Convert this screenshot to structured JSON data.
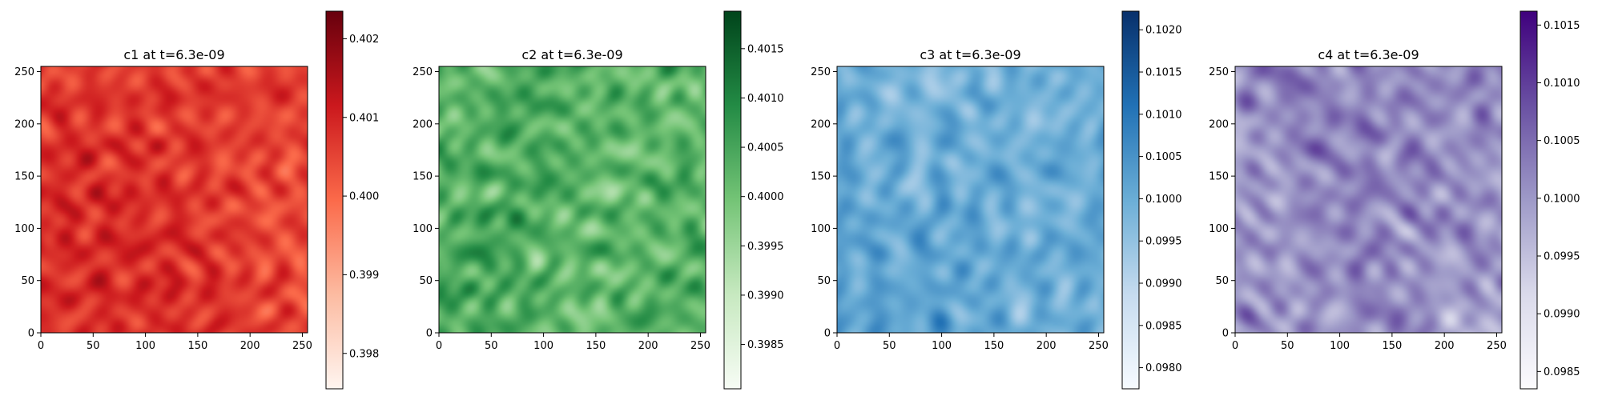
{
  "figure": {
    "background": "#ffffff"
  },
  "chart_data": [
    {
      "type": "heatmap",
      "title": "c1 at t=6.3e-09",
      "variable": "c1",
      "colormap": "Reds",
      "colormap_stops": [
        "#fff5f0",
        "#fcbba1",
        "#fb6a4a",
        "#cb181d",
        "#67000d"
      ],
      "grid_shape": [
        256,
        256
      ],
      "xlim": [
        0,
        255
      ],
      "ylim": [
        0,
        255
      ],
      "x_ticks": [
        0,
        50,
        100,
        150,
        200,
        250
      ],
      "y_ticks": [
        0,
        50,
        100,
        150,
        200,
        250
      ],
      "colorbar": {
        "range": [
          0.39755,
          0.40235
        ],
        "ticks": [
          "0.398",
          "0.399",
          "0.400",
          "0.401",
          "0.402"
        ],
        "tick_values": [
          0.398,
          0.399,
          0.4,
          0.401,
          0.402
        ]
      },
      "field_level_range": [
        0.45,
        0.85
      ]
    },
    {
      "type": "heatmap",
      "title": "c2 at t=6.3e-09",
      "variable": "c2",
      "colormap": "Greens",
      "colormap_stops": [
        "#f7fcf5",
        "#c7e9c0",
        "#74c476",
        "#238b45",
        "#00441b"
      ],
      "grid_shape": [
        256,
        256
      ],
      "xlim": [
        0,
        255
      ],
      "ylim": [
        0,
        255
      ],
      "x_ticks": [
        0,
        50,
        100,
        150,
        200,
        250
      ],
      "y_ticks": [
        0,
        50,
        100,
        150,
        200,
        250
      ],
      "colorbar": {
        "range": [
          0.39805,
          0.40188
        ],
        "ticks": [
          "0.3985",
          "0.3990",
          "0.3995",
          "0.4000",
          "0.4005",
          "0.4010",
          "0.4015"
        ],
        "tick_values": [
          0.3985,
          0.399,
          0.3995,
          0.4,
          0.4005,
          0.401,
          0.4015
        ]
      },
      "field_level_range": [
        0.3,
        0.85
      ]
    },
    {
      "type": "heatmap",
      "title": "c3 at t=6.3e-09",
      "variable": "c3",
      "colormap": "Blues",
      "colormap_stops": [
        "#f7fbff",
        "#c6dbef",
        "#6baed6",
        "#2171b5",
        "#08306b"
      ],
      "grid_shape": [
        256,
        256
      ],
      "xlim": [
        0,
        255
      ],
      "ylim": [
        0,
        255
      ],
      "x_ticks": [
        0,
        50,
        100,
        150,
        200,
        250
      ],
      "y_ticks": [
        0,
        50,
        100,
        150,
        200,
        250
      ],
      "colorbar": {
        "range": [
          0.09775,
          0.10222
        ],
        "ticks": [
          "0.0980",
          "0.0985",
          "0.0990",
          "0.0995",
          "0.1000",
          "0.1005",
          "0.1010",
          "0.1015",
          "0.1020"
        ],
        "tick_values": [
          0.098,
          0.0985,
          0.099,
          0.0995,
          0.1,
          0.1005,
          0.101,
          0.1015,
          0.102
        ]
      },
      "field_level_range": [
        0.3,
        0.75
      ]
    },
    {
      "type": "heatmap",
      "title": "c4 at t=6.3e-09",
      "variable": "c4",
      "colormap": "Purples",
      "colormap_stops": [
        "#fcfbfd",
        "#dadaeb",
        "#9e9ac8",
        "#6a51a3",
        "#3f007d"
      ],
      "grid_shape": [
        256,
        256
      ],
      "xlim": [
        0,
        255
      ],
      "ylim": [
        0,
        255
      ],
      "x_ticks": [
        0,
        50,
        100,
        150,
        200,
        250
      ],
      "y_ticks": [
        0,
        50,
        100,
        150,
        200,
        250
      ],
      "colorbar": {
        "range": [
          0.09835,
          0.10162
        ],
        "ticks": [
          "0.0985",
          "0.0990",
          "0.0995",
          "0.1000",
          "0.1005",
          "0.1010",
          "0.1015"
        ],
        "tick_values": [
          0.0985,
          0.099,
          0.0995,
          0.1,
          0.1005,
          0.101,
          0.1015
        ]
      },
      "field_level_range": [
        0.25,
        0.8
      ]
    }
  ]
}
